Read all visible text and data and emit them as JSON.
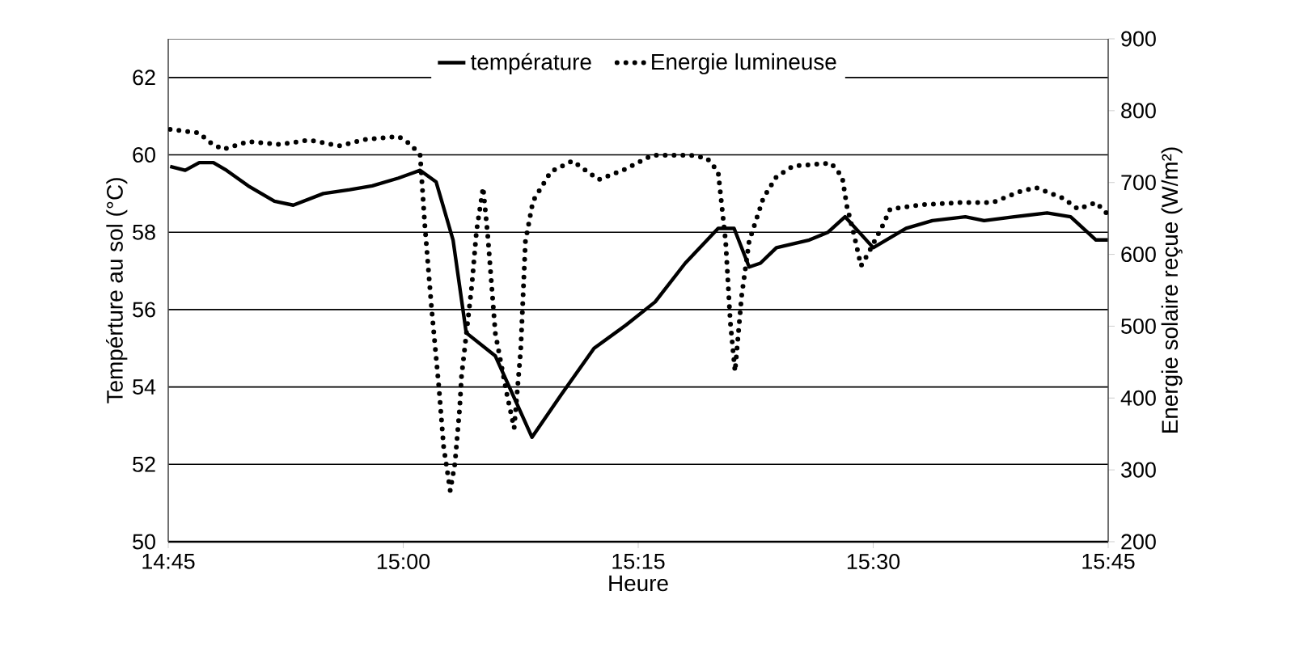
{
  "chart_data": {
    "type": "line",
    "xlabel": "Heure",
    "ylabel": "Tempérture au sol (°C)",
    "y2label": "Energie solaire reçue (W/m²)",
    "xlim": [
      14.75,
      15.75
    ],
    "xticks": [
      {
        "value": 14.75,
        "label": "14:45"
      },
      {
        "value": 15.0,
        "label": "15:00"
      },
      {
        "value": 15.25,
        "label": "15:15"
      },
      {
        "value": 15.5,
        "label": "15:30"
      },
      {
        "value": 15.75,
        "label": "15:45"
      }
    ],
    "ylim": [
      50,
      63
    ],
    "yticks": [
      50,
      52,
      54,
      56,
      58,
      60,
      62
    ],
    "y2lim": [
      200,
      900
    ],
    "y2ticks": [
      200,
      300,
      400,
      500,
      600,
      700,
      800,
      900
    ],
    "grid": "y",
    "legend": "top",
    "marker": "none",
    "series": [
      {
        "name": "température",
        "color": "#000000",
        "line_style": "solid",
        "x": [
          14.752,
          14.768,
          14.783,
          14.798,
          14.812,
          14.835,
          14.863,
          14.883,
          14.915,
          14.943,
          14.967,
          14.995,
          15.018,
          15.035,
          15.053,
          15.067,
          15.098,
          15.137,
          15.168,
          15.203,
          15.237,
          15.268,
          15.3,
          15.335,
          15.352,
          15.368,
          15.38,
          15.397,
          15.432,
          15.452,
          15.47,
          15.5,
          15.535,
          15.563,
          15.598,
          15.618,
          15.65,
          15.685,
          15.71,
          15.737,
          15.75
        ],
        "values": [
          59.7,
          59.6,
          59.8,
          59.8,
          59.6,
          59.2,
          58.8,
          58.7,
          59.0,
          59.1,
          59.2,
          59.4,
          59.6,
          59.3,
          57.8,
          55.4,
          54.8,
          52.7,
          53.8,
          55.0,
          55.6,
          56.2,
          57.2,
          58.1,
          58.1,
          57.1,
          57.2,
          57.6,
          57.8,
          58.0,
          58.4,
          57.6,
          58.1,
          58.3,
          58.4,
          58.3,
          58.4,
          58.5,
          58.4,
          57.8,
          57.8
        ]
      },
      {
        "name": "Energie lumineuse",
        "color": "#000000",
        "line_style": "dotted",
        "axis": "y2",
        "x": [
          14.752,
          14.783,
          14.793,
          14.808,
          14.835,
          14.868,
          14.9,
          14.932,
          14.96,
          14.995,
          15.008,
          15.018,
          15.023,
          15.03,
          15.038,
          15.043,
          15.05,
          15.055,
          15.06,
          15.062,
          15.073,
          15.078,
          15.085,
          15.09,
          15.098,
          15.11,
          15.118,
          15.125,
          15.13,
          15.138,
          15.157,
          15.18,
          15.208,
          15.237,
          15.265,
          15.305,
          15.323,
          15.335,
          15.343,
          15.348,
          15.353,
          15.36,
          15.368,
          15.383,
          15.397,
          15.415,
          15.455,
          15.467,
          15.472,
          15.48,
          15.487,
          15.495,
          15.51,
          15.518,
          15.552,
          15.592,
          15.627,
          15.655,
          15.673,
          15.702,
          15.718,
          15.737,
          15.75
        ],
        "values": [
          774,
          769,
          757,
          746,
          757,
          753,
          759,
          751,
          760,
          764,
          753,
          738,
          640,
          527,
          414,
          332,
          271,
          309,
          385,
          430,
          557,
          633,
          693,
          625,
          490,
          407,
          358,
          467,
          618,
          674,
          715,
          730,
          704,
          719,
          738,
          738,
          734,
          715,
          618,
          505,
          437,
          542,
          618,
          678,
          708,
          723,
          727,
          708,
          667,
          625,
          584,
          602,
          640,
          663,
          669,
          672,
          672,
          687,
          693,
          678,
          663,
          672,
          655
        ]
      }
    ]
  }
}
